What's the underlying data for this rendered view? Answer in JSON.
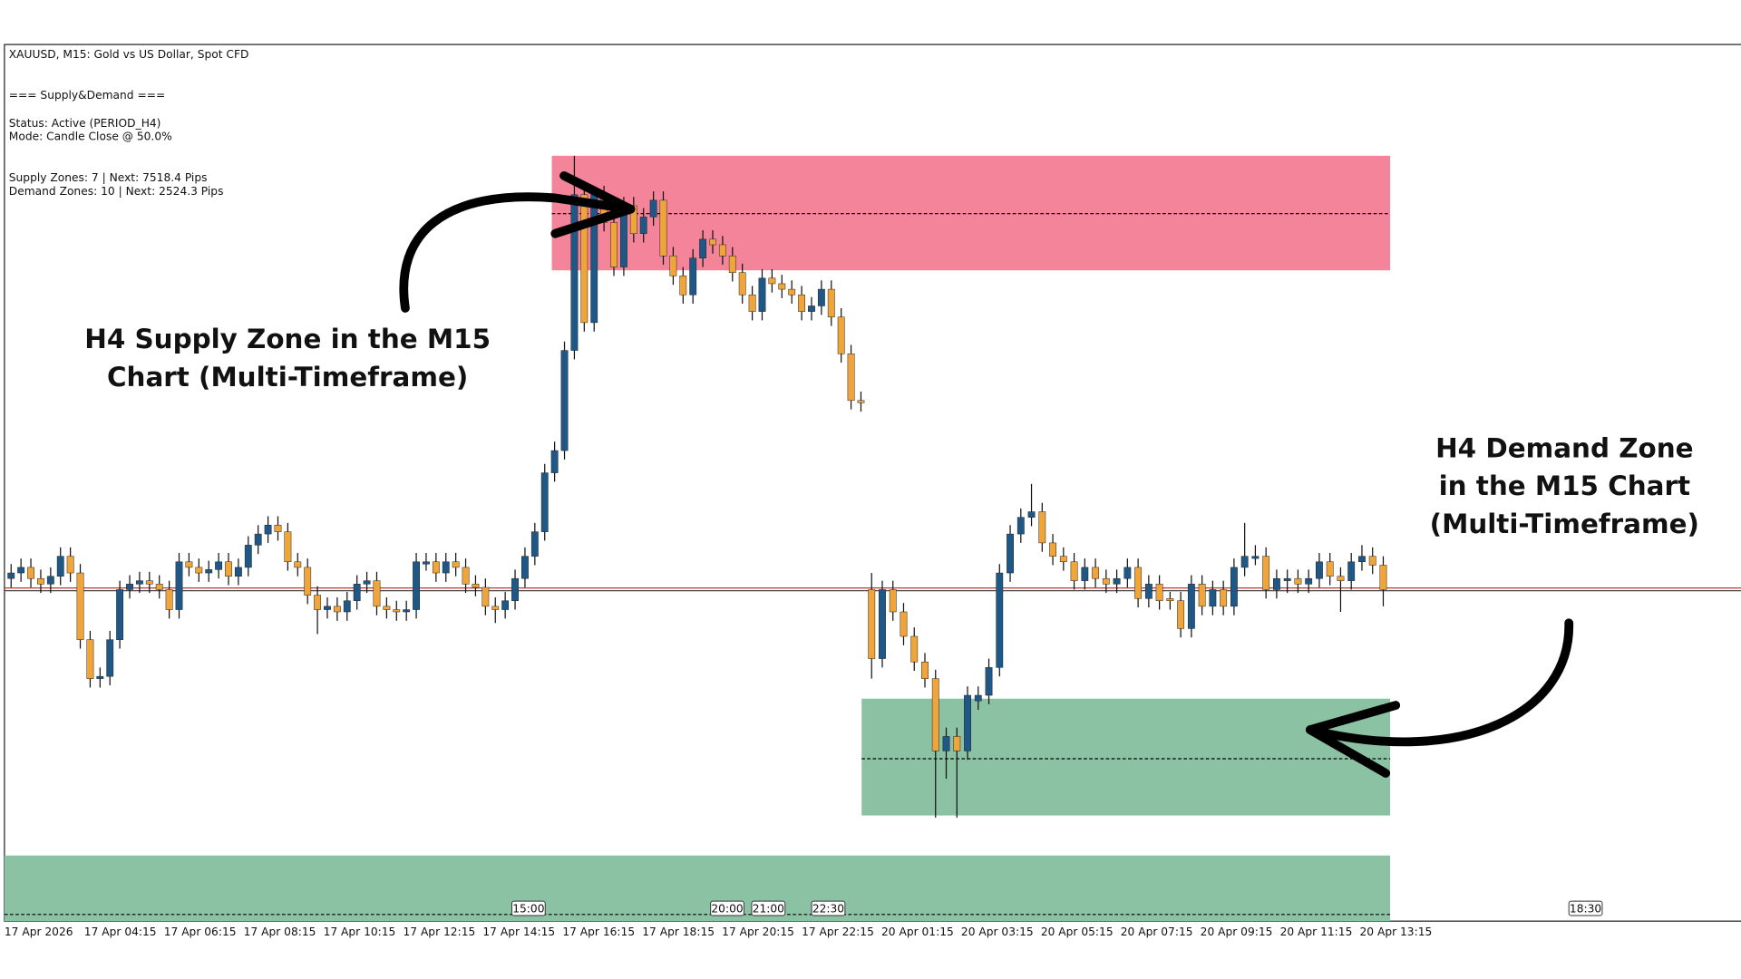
{
  "header": {
    "symbol": "XAUUSD, M15:  Gold vs US Dollar, Spot CFD",
    "indicator": "=== Supply&Demand ===",
    "status": "Status: Active (PERIOD_H4)",
    "mode": "Mode: Candle Close @ 50.0%",
    "supply": "Supply Zones: 7 | Next: 7518.4 Pips",
    "demand": "Demand Zones: 10 | Next: 2524.3 Pips"
  },
  "annotations": {
    "supply": [
      "H4 Supply Zone in the M15",
      "Chart (Multi-Timeframe)"
    ],
    "demand": [
      "H4 Demand Zone",
      "in the M15 Chart",
      "(Multi-Timeframe)"
    ]
  },
  "chart_data": {
    "type": "candlestick",
    "ylim": [
      72,
      858
    ],
    "x_labels": [
      "17 Apr 2026",
      "17 Apr 04:15",
      "17 Apr 06:15",
      "17 Apr 08:15",
      "17 Apr 10:15",
      "17 Apr 12:15",
      "17 Apr 14:15",
      "17 Apr 16:15",
      "17 Apr 18:15",
      "17 Apr 20:15",
      "17 Apr 22:15",
      "20 Apr 01:15",
      "20 Apr 03:15",
      "20 Apr 05:15",
      "20 Apr 07:15",
      "20 Apr 09:15",
      "20 Apr 11:15",
      "20 Apr 13:15"
    ],
    "time_markers": [
      "15:00",
      "20:00",
      "21:00",
      "22:30",
      "18:30"
    ],
    "colors": {
      "up": "#1f5787",
      "down": "#f0a53a",
      "wick": "#111111",
      "price_line": "#c0392b"
    },
    "price_line": 370,
    "zones": [
      {
        "top": 760,
        "bottom": 657,
        "mid": 708,
        "color": "#f4849a"
      },
      {
        "top": 272,
        "bottom": 167,
        "mid": 218,
        "color": "#8cc2a4"
      },
      {
        "top": 131,
        "bottom": 72,
        "mid": 78,
        "color": "#8cc2a4"
      }
    ],
    "candles": [
      [
        380,
        393,
        372,
        385
      ],
      [
        385,
        398,
        377,
        390
      ],
      [
        390,
        398,
        372,
        380
      ],
      [
        380,
        388,
        367,
        375
      ],
      [
        375,
        390,
        367,
        382
      ],
      [
        382,
        408,
        374,
        400
      ],
      [
        400,
        408,
        377,
        385
      ],
      [
        385,
        393,
        317,
        325
      ],
      [
        325,
        333,
        282,
        290
      ],
      [
        290,
        300,
        282,
        292
      ],
      [
        292,
        333,
        284,
        325
      ],
      [
        325,
        378,
        317,
        370
      ],
      [
        370,
        383,
        362,
        375
      ],
      [
        375,
        386,
        367,
        378
      ],
      [
        378,
        386,
        367,
        375
      ],
      [
        375,
        383,
        362,
        370
      ],
      [
        370,
        378,
        344,
        352
      ],
      [
        352,
        403,
        344,
        395
      ],
      [
        395,
        403,
        382,
        390
      ],
      [
        390,
        398,
        377,
        385
      ],
      [
        385,
        396,
        377,
        388
      ],
      [
        388,
        403,
        380,
        395
      ],
      [
        395,
        403,
        374,
        382
      ],
      [
        382,
        398,
        374,
        390
      ],
      [
        390,
        418,
        382,
        410
      ],
      [
        410,
        428,
        402,
        420
      ],
      [
        420,
        436,
        412,
        428
      ],
      [
        428,
        436,
        414,
        422
      ],
      [
        422,
        430,
        387,
        395
      ],
      [
        395,
        403,
        382,
        390
      ],
      [
        390,
        398,
        357,
        365
      ],
      [
        365,
        373,
        330,
        352
      ],
      [
        352,
        363,
        344,
        355
      ],
      [
        355,
        363,
        342,
        350
      ],
      [
        350,
        368,
        342,
        360
      ],
      [
        360,
        383,
        352,
        375
      ],
      [
        375,
        386,
        367,
        378
      ],
      [
        378,
        386,
        347,
        355
      ],
      [
        355,
        363,
        344,
        352
      ],
      [
        352,
        360,
        342,
        350
      ],
      [
        350,
        360,
        342,
        352
      ],
      [
        352,
        403,
        344,
        395
      ],
      [
        393,
        403,
        387,
        395
      ],
      [
        395,
        403,
        377,
        385
      ],
      [
        385,
        403,
        377,
        395
      ],
      [
        395,
        403,
        382,
        390
      ],
      [
        390,
        398,
        367,
        375
      ],
      [
        375,
        383,
        364,
        372
      ],
      [
        372,
        380,
        347,
        355
      ],
      [
        355,
        363,
        340,
        352
      ],
      [
        352,
        368,
        344,
        360
      ],
      [
        360,
        388,
        352,
        380
      ],
      [
        380,
        408,
        372,
        400
      ],
      [
        400,
        430,
        392,
        422
      ],
      [
        422,
        483,
        414,
        475
      ],
      [
        475,
        503,
        467,
        495
      ],
      [
        495,
        593,
        487,
        585
      ],
      [
        585,
        760,
        577,
        725
      ],
      [
        725,
        733,
        602,
        610
      ],
      [
        610,
        733,
        602,
        725
      ],
      [
        725,
        733,
        692,
        700
      ],
      [
        700,
        708,
        652,
        660
      ],
      [
        660,
        723,
        652,
        715
      ],
      [
        715,
        723,
        682,
        690
      ],
      [
        690,
        713,
        682,
        705
      ],
      [
        705,
        728,
        697,
        720
      ],
      [
        720,
        728,
        662,
        670
      ],
      [
        670,
        678,
        644,
        652
      ],
      [
        652,
        660,
        627,
        635
      ],
      [
        635,
        676,
        627,
        668
      ],
      [
        668,
        693,
        660,
        685
      ],
      [
        685,
        693,
        672,
        680
      ],
      [
        680,
        688,
        662,
        670
      ],
      [
        670,
        678,
        647,
        655
      ],
      [
        655,
        663,
        627,
        635
      ],
      [
        635,
        643,
        612,
        620
      ],
      [
        620,
        658,
        612,
        650
      ],
      [
        650,
        658,
        637,
        645
      ],
      [
        645,
        653,
        632,
        640
      ],
      [
        640,
        648,
        627,
        635
      ],
      [
        635,
        643,
        612,
        620
      ],
      [
        620,
        633,
        612,
        625
      ],
      [
        625,
        648,
        617,
        640
      ],
      [
        640,
        648,
        607,
        615
      ],
      [
        615,
        623,
        574,
        582
      ],
      [
        582,
        590,
        532,
        540
      ],
      [
        540,
        548,
        530,
        538
      ],
      [
        370,
        385,
        290,
        308
      ],
      [
        308,
        378,
        300,
        370
      ],
      [
        370,
        378,
        342,
        350
      ],
      [
        350,
        358,
        320,
        328
      ],
      [
        328,
        336,
        297,
        305
      ],
      [
        305,
        313,
        282,
        290
      ],
      [
        290,
        298,
        165,
        225
      ],
      [
        225,
        246,
        200,
        238
      ],
      [
        238,
        246,
        165,
        225
      ],
      [
        225,
        283,
        217,
        275
      ],
      [
        270,
        283,
        262,
        275
      ],
      [
        275,
        308,
        267,
        300
      ],
      [
        300,
        393,
        292,
        385
      ],
      [
        385,
        428,
        377,
        420
      ],
      [
        420,
        443,
        412,
        435
      ],
      [
        435,
        465,
        427,
        440
      ],
      [
        440,
        448,
        404,
        412
      ],
      [
        412,
        420,
        392,
        400
      ],
      [
        400,
        408,
        387,
        395
      ],
      [
        395,
        403,
        370,
        378
      ],
      [
        378,
        398,
        370,
        390
      ],
      [
        390,
        398,
        372,
        380
      ],
      [
        380,
        388,
        367,
        375
      ],
      [
        375,
        388,
        367,
        380
      ],
      [
        380,
        398,
        372,
        390
      ],
      [
        390,
        398,
        354,
        362
      ],
      [
        362,
        383,
        354,
        375
      ],
      [
        375,
        383,
        352,
        360
      ],
      [
        362,
        368,
        352,
        360
      ],
      [
        360,
        368,
        327,
        335
      ],
      [
        335,
        383,
        327,
        375
      ],
      [
        375,
        383,
        347,
        355
      ],
      [
        355,
        378,
        347,
        370
      ],
      [
        370,
        378,
        347,
        355
      ],
      [
        355,
        398,
        347,
        390
      ],
      [
        390,
        430,
        382,
        400
      ],
      [
        398,
        410,
        392,
        400
      ],
      [
        400,
        408,
        362,
        370
      ],
      [
        370,
        388,
        362,
        380
      ],
      [
        378,
        388,
        367,
        380
      ],
      [
        380,
        388,
        367,
        375
      ],
      [
        375,
        388,
        367,
        380
      ],
      [
        380,
        403,
        372,
        395
      ],
      [
        395,
        403,
        374,
        382
      ],
      [
        382,
        390,
        350,
        378
      ],
      [
        378,
        403,
        370,
        395
      ],
      [
        395,
        410,
        387,
        400
      ],
      [
        400,
        408,
        384,
        392
      ],
      [
        392,
        400,
        355,
        370
      ]
    ]
  }
}
